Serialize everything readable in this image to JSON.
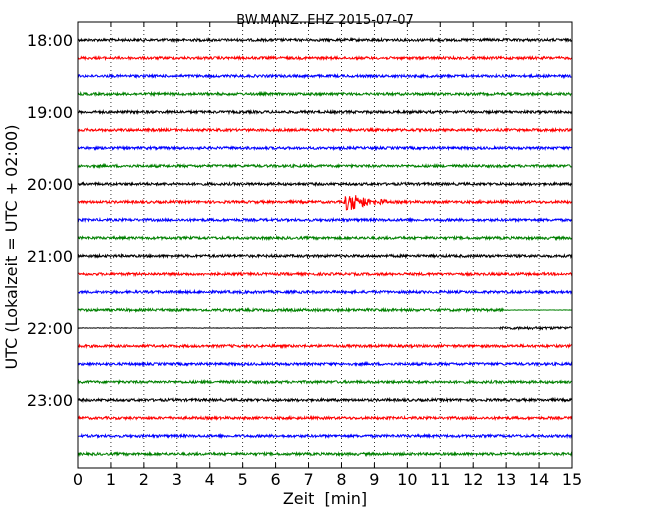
{
  "chart_data": {
    "type": "line",
    "title": "BW.MANZ..EHZ 2015-07-07",
    "xlabel": "Zeit  [min]",
    "ylabel": "UTC (Lokalzeit = UTC + 02:00)",
    "xlim": [
      0,
      15
    ],
    "x_ticks": [
      "0",
      "1",
      "2",
      "3",
      "4",
      "5",
      "6",
      "7",
      "8",
      "9",
      "10",
      "11",
      "12",
      "13",
      "14",
      "15"
    ],
    "y_tick_labels": [
      "18:00",
      "19:00",
      "20:00",
      "21:00",
      "22:00",
      "23:00"
    ],
    "grid": "vertical dotted",
    "trace_colors": [
      "#000000",
      "#ff0000",
      "#0000ff",
      "#008000"
    ],
    "traces": [
      {
        "start": "18:00",
        "color": "#000000"
      },
      {
        "start": "18:15",
        "color": "#ff0000"
      },
      {
        "start": "18:30",
        "color": "#0000ff"
      },
      {
        "start": "18:45",
        "color": "#008000"
      },
      {
        "start": "19:00",
        "color": "#000000"
      },
      {
        "start": "19:15",
        "color": "#ff0000"
      },
      {
        "start": "19:30",
        "color": "#0000ff"
      },
      {
        "start": "19:45",
        "color": "#008000"
      },
      {
        "start": "20:00",
        "color": "#000000"
      },
      {
        "start": "20:15",
        "color": "#ff0000",
        "event": {
          "x_min": 8.1,
          "duration_min": 1.3
        }
      },
      {
        "start": "20:30",
        "color": "#0000ff"
      },
      {
        "start": "20:45",
        "color": "#008000"
      },
      {
        "start": "21:00",
        "color": "#000000"
      },
      {
        "start": "21:15",
        "color": "#ff0000"
      },
      {
        "start": "21:30",
        "color": "#0000ff"
      },
      {
        "start": "21:45",
        "color": "#008000",
        "quiet_after_min": 12.9
      },
      {
        "start": "22:00",
        "color": "#000000",
        "quiet_before_min": 12.8
      },
      {
        "start": "22:15",
        "color": "#ff0000"
      },
      {
        "start": "22:30",
        "color": "#0000ff"
      },
      {
        "start": "22:45",
        "color": "#008000"
      },
      {
        "start": "23:00",
        "color": "#000000"
      },
      {
        "start": "23:15",
        "color": "#ff0000"
      },
      {
        "start": "23:30",
        "color": "#0000ff"
      },
      {
        "start": "23:45",
        "color": "#008000"
      }
    ]
  }
}
